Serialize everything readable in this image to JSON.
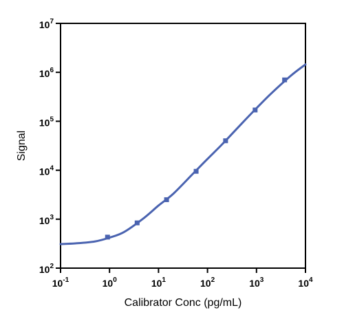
{
  "chart_data": {
    "type": "scatter",
    "xlabel": "Calibrator Conc (pg/mL)",
    "ylabel": "Signal",
    "x_scale": "log",
    "y_scale": "log",
    "xlim": [
      0.1,
      10000
    ],
    "ylim": [
      100,
      10000000
    ],
    "grid": false,
    "x_ticks": [
      {
        "base": "10",
        "exp": "-1",
        "value": 0.1
      },
      {
        "base": "10",
        "exp": "0",
        "value": 1
      },
      {
        "base": "10",
        "exp": "1",
        "value": 10
      },
      {
        "base": "10",
        "exp": "2",
        "value": 100
      },
      {
        "base": "10",
        "exp": "3",
        "value": 1000
      },
      {
        "base": "10",
        "exp": "4",
        "value": 10000
      }
    ],
    "y_ticks": [
      {
        "base": "10",
        "exp": "2",
        "value": 100
      },
      {
        "base": "10",
        "exp": "3",
        "value": 1000
      },
      {
        "base": "10",
        "exp": "4",
        "value": 10000
      },
      {
        "base": "10",
        "exp": "5",
        "value": 100000
      },
      {
        "base": "10",
        "exp": "6",
        "value": 1000000
      },
      {
        "base": "10",
        "exp": "7",
        "value": 10000000
      }
    ],
    "series": [
      {
        "kind": "points",
        "color": "#4a63b0",
        "marker": "square",
        "x": [
          0.91,
          3.66,
          14.6,
          58.6,
          234,
          938,
          3750
        ],
        "y": [
          430,
          840,
          2500,
          9500,
          40000,
          170000,
          700000
        ]
      },
      {
        "kind": "fit-curve",
        "color": "#4a63b0",
        "x": [
          0.1,
          0.2,
          0.5,
          1,
          2,
          5,
          10,
          20,
          50,
          100,
          200,
          500,
          1000,
          2000,
          5000,
          10000
        ],
        "y": [
          310,
          320,
          350,
          420,
          550,
          1050,
          1900,
          3300,
          8400,
          17000,
          34000,
          90000,
          185000,
          370000,
          850000,
          1450000
        ]
      }
    ]
  }
}
